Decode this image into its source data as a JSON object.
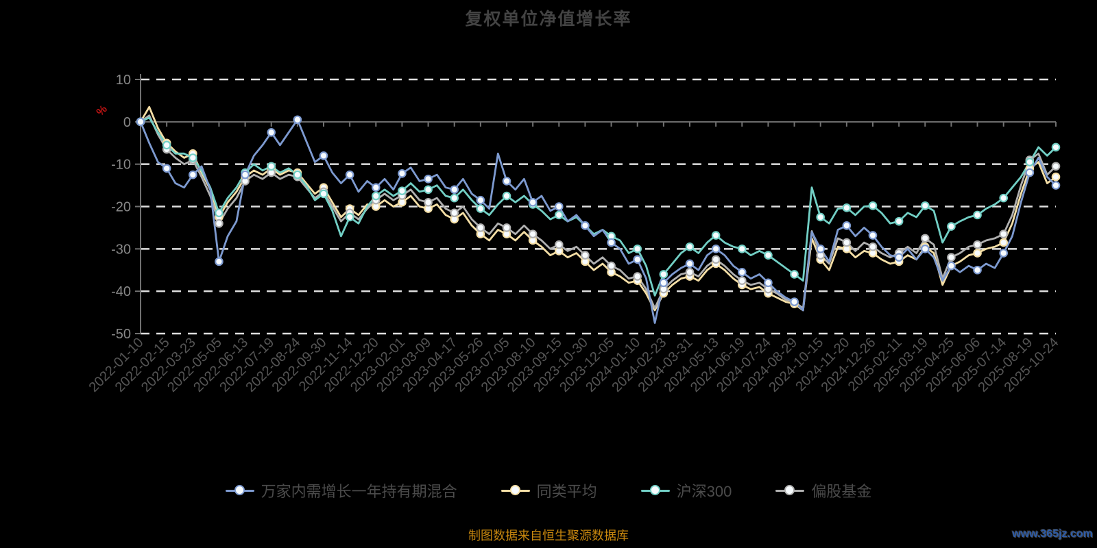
{
  "title": "复权单位净值增长率",
  "footer": {
    "source_note": "制图数据来自恒生聚源数据库",
    "watermark": "www.365jz.com"
  },
  "colors": {
    "background": "#000000",
    "title_text": "#434343",
    "axis_line": "#707070",
    "gridline": "#dfdfdf",
    "y_tick_label": "#888888",
    "x_tick_label": "#555555",
    "unit_label": "#c01414",
    "legend_text": "#4b4b4b",
    "marker_fill": "#f7fbfe",
    "footer_text": "#c8870e",
    "watermark_text": "#2c5caa"
  },
  "chart_data": {
    "type": "line",
    "title": "复权单位净值增长率",
    "xlabel": "",
    "ylabel": "%",
    "ylim": [
      -50,
      10
    ],
    "y_ticks": [
      10,
      0,
      -10,
      -20,
      -30,
      -40,
      -50
    ],
    "grid": "horizontal dashed white lines, x-axis drawn at 0 with tick marks",
    "legend_position": "bottom",
    "marker_every": 3,
    "x_tick_labels": [
      "2022-01-10",
      "2022-02-15",
      "2022-03-23",
      "2022-05-05",
      "2022-06-13",
      "2022-07-19",
      "2022-08-24",
      "2022-09-30",
      "2022-11-14",
      "2022-12-20",
      "2023-02-01",
      "2023-03-09",
      "2023-04-17",
      "2023-05-26",
      "2023-07-05",
      "2023-08-10",
      "2023-09-15",
      "2023-10-30",
      "2023-12-05",
      "2024-01-10",
      "2024-02-23",
      "2024-03-31",
      "2024-05-13",
      "2024-06-19",
      "2024-07-24",
      "2024-08-29",
      "2024-10-15",
      "2024-11-20",
      "2024-12-26",
      "2025-02-11",
      "2025-03-19",
      "2025-04-25",
      "2025-06-06",
      "2025-07-14",
      "2025-08-19",
      "2025-10-24"
    ],
    "series": [
      {
        "name": "万家内需增长一年持有期混合",
        "color": "#7d9ad0",
        "values": [
          0,
          -5,
          -9.5,
          -11,
          -14.5,
          -15.5,
          -12.5,
          -10.5,
          -16,
          -33,
          -27,
          -23.5,
          -12.5,
          -8,
          -5.5,
          -2.5,
          -5.5,
          -2.5,
          0.5,
          -4.5,
          -9.5,
          -8,
          -12,
          -14.5,
          -12.5,
          -16.5,
          -14,
          -15.5,
          -13.5,
          -16,
          -12.2,
          -10.8,
          -14,
          -13.5,
          -12.5,
          -15.5,
          -16,
          -13.5,
          -17,
          -18.5,
          -20.5,
          -7.5,
          -14,
          -16,
          -13.5,
          -19,
          -17.5,
          -21,
          -20,
          -23.5,
          -22,
          -24.5,
          -27,
          -25.5,
          -28.5,
          -30,
          -33.5,
          -32.5,
          -37,
          -47.5,
          -38,
          -36,
          -34.5,
          -33.5,
          -35,
          -31.5,
          -30,
          -31.5,
          -34,
          -35.5,
          -37,
          -36,
          -38,
          -40,
          -41.5,
          -42.5,
          -44.5,
          -26,
          -30,
          -33,
          -25.5,
          -24.5,
          -27,
          -25,
          -26.8,
          -29.5,
          -31.5,
          -32,
          -30,
          -32.5,
          -30,
          -32,
          -37.5,
          -34,
          -35.5,
          -34,
          -35,
          -33.5,
          -34.5,
          -31,
          -27,
          -19,
          -12,
          -8.5,
          -13,
          -15
        ]
      },
      {
        "name": "同类平均",
        "color": "#f5dfa6",
        "values": [
          0,
          3.5,
          -1.5,
          -5,
          -7,
          -8.5,
          -7.5,
          -12,
          -16,
          -22.5,
          -19,
          -16.5,
          -13,
          -11.5,
          -12.5,
          -11,
          -12.5,
          -11.5,
          -12,
          -14.5,
          -17,
          -15.5,
          -19,
          -22.5,
          -20.5,
          -22,
          -19.5,
          -20,
          -18.5,
          -20,
          -19,
          -17.5,
          -20,
          -20.5,
          -19.5,
          -22,
          -23,
          -21.5,
          -24.5,
          -26.5,
          -28,
          -25.5,
          -26.5,
          -28,
          -26,
          -28,
          -29.5,
          -31.5,
          -30.5,
          -32,
          -31,
          -33,
          -35,
          -33.5,
          -35.5,
          -36.5,
          -38,
          -37.5,
          -40.5,
          -44.5,
          -40.5,
          -38.5,
          -37,
          -36.5,
          -37.5,
          -35,
          -33.5,
          -35,
          -37,
          -38.5,
          -39.5,
          -39,
          -40.5,
          -41.5,
          -42.5,
          -43,
          -44.5,
          -27.5,
          -32.5,
          -35,
          -29.5,
          -30,
          -32,
          -30.5,
          -31,
          -32.5,
          -33.5,
          -33,
          -31.5,
          -32.5,
          -29.5,
          -31,
          -38.5,
          -34,
          -33,
          -31.5,
          -31,
          -30,
          -29.5,
          -28.5,
          -24,
          -17,
          -11,
          -9.5,
          -14.5,
          -13
        ]
      },
      {
        "name": "沪深300",
        "color": "#72cfc5",
        "values": [
          0,
          1,
          -2.5,
          -5.5,
          -7.5,
          -7.5,
          -8.5,
          -11.5,
          -15.5,
          -21.5,
          -18,
          -15.5,
          -12,
          -10,
          -11.5,
          -10.5,
          -12,
          -11,
          -12.5,
          -15,
          -18.5,
          -17,
          -21,
          -27,
          -22.5,
          -24,
          -20,
          -17.5,
          -16,
          -17.5,
          -16.3,
          -14.5,
          -16.5,
          -16,
          -15,
          -17.5,
          -18,
          -16,
          -18.5,
          -20.5,
          -22,
          -19.5,
          -17.5,
          -19,
          -17.5,
          -19.5,
          -21,
          -23,
          -22,
          -23.5,
          -22.5,
          -24.5,
          -26.5,
          -25.5,
          -27,
          -28,
          -31,
          -30,
          -34,
          -41,
          -36,
          -33.5,
          -31,
          -29.5,
          -31,
          -28.5,
          -26.8,
          -28.5,
          -29.5,
          -30,
          -31.5,
          -30.5,
          -31.5,
          -33,
          -34.5,
          -36,
          -37.5,
          -15.5,
          -22.5,
          -24,
          -20.5,
          -20.3,
          -22,
          -20,
          -19.8,
          -21.5,
          -24,
          -23.5,
          -21.5,
          -22.5,
          -19.8,
          -21,
          -28.5,
          -24.7,
          -23.5,
          -22.5,
          -22,
          -20.5,
          -19.5,
          -18,
          -15.5,
          -13,
          -9.5,
          -6,
          -8,
          -6
        ]
      },
      {
        "name": "偏股基金",
        "color": "#b0b0b0",
        "values": [
          0,
          1.5,
          -3,
          -6.5,
          -8.5,
          -10,
          -9,
          -13,
          -17.5,
          -24,
          -20.5,
          -18,
          -14,
          -12.5,
          -13.5,
          -12,
          -13.5,
          -12.5,
          -13,
          -15.5,
          -18,
          -16.5,
          -20,
          -23.5,
          -21.5,
          -23,
          -20.5,
          -18.5,
          -17,
          -18.5,
          -17.4,
          -16,
          -18.5,
          -19,
          -18,
          -20.5,
          -21.5,
          -20,
          -23,
          -25,
          -26.5,
          -24,
          -25,
          -26.5,
          -24.5,
          -26.5,
          -28,
          -30,
          -29,
          -30.5,
          -29.5,
          -31.5,
          -33.5,
          -32,
          -34,
          -35,
          -37,
          -36.5,
          -39.5,
          -44,
          -39.5,
          -37.5,
          -36,
          -35.5,
          -36.5,
          -34,
          -32.5,
          -34,
          -36,
          -37.5,
          -38.5,
          -38,
          -39.5,
          -40.5,
          -42,
          -42.5,
          -44,
          -25.8,
          -31.5,
          -33.5,
          -27.5,
          -28.5,
          -30.5,
          -28.5,
          -29.5,
          -31,
          -32,
          -31,
          -29.5,
          -31,
          -27.5,
          -29,
          -37,
          -32,
          -31,
          -29.5,
          -29,
          -28,
          -27.5,
          -26.5,
          -22,
          -15,
          -9,
          -7.5,
          -12.5,
          -10.5
        ]
      }
    ]
  }
}
